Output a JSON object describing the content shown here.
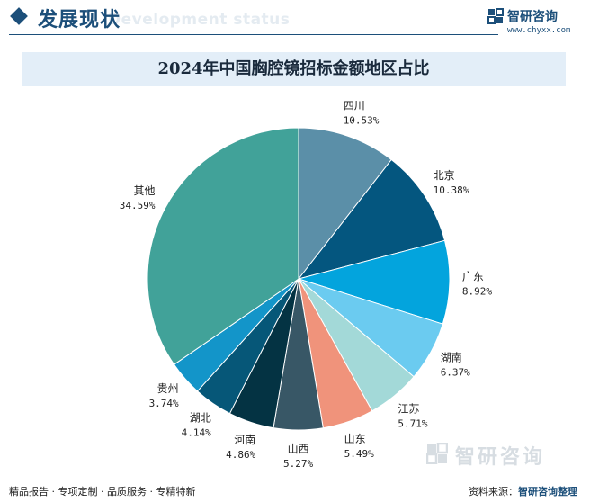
{
  "header": {
    "title": "发展现状",
    "subtitle": "Development status",
    "brand_name": "智研咨询",
    "brand_url": "www.chyxx.com"
  },
  "chart_data": {
    "type": "pie",
    "title": "2024年中国胸腔镜招标金额地区占比",
    "unit": "%",
    "slices": [
      {
        "label": "四川",
        "value": 10.53,
        "display": "10.53%",
        "color": "#5b8fa8"
      },
      {
        "label": "北京",
        "value": 10.38,
        "display": "10.38%",
        "color": "#04567f"
      },
      {
        "label": "广东",
        "value": 8.92,
        "display": "8.92%",
        "color": "#03a4dd"
      },
      {
        "label": "湖南",
        "value": 6.37,
        "display": "6.37%",
        "color": "#6bcbf0"
      },
      {
        "label": "江苏",
        "value": 5.71,
        "display": "5.71%",
        "color": "#a3d9d8"
      },
      {
        "label": "山东",
        "value": 5.49,
        "display": "5.49%",
        "color": "#f0937b"
      },
      {
        "label": "山西",
        "value": 5.27,
        "display": "5.27%",
        "color": "#385766"
      },
      {
        "label": "河南",
        "value": 4.86,
        "display": "4.86%",
        "color": "#043343"
      },
      {
        "label": "湖北",
        "value": 4.14,
        "display": "4.14%",
        "color": "#065778"
      },
      {
        "label": "贵州",
        "value": 3.74,
        "display": "3.74%",
        "color": "#1395c9"
      },
      {
        "label": "其他",
        "value": 34.59,
        "display": "34.59%",
        "color": "#41a299"
      }
    ]
  },
  "footer": {
    "left": "精品报告 · 专项定制 · 品质服务 · 专精特新",
    "source_label": "资料来源：",
    "source_value": "智研咨询整理"
  },
  "watermark": {
    "text": "智研咨询"
  }
}
